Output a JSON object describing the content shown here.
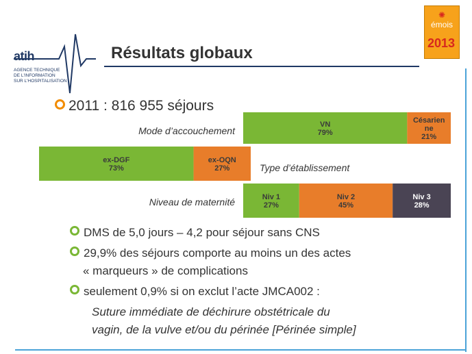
{
  "logo": {
    "name": "atih",
    "subtitle_lines": [
      "AGENCE TECHNIQUE",
      "DE L'INFORMATION",
      "SUR L'HOSPITALISATION"
    ],
    "badge_word": "émois",
    "badge_year": "2013"
  },
  "title": "Résultats globaux",
  "headline": "2011 : 816 955 séjours",
  "colors": {
    "green": "#7ab735",
    "orange": "#e87d2a",
    "dark": "#4a4454",
    "accent_blue": "#4aa3d8",
    "title_rule": "#1f3864"
  },
  "chart_data": [
    {
      "type": "bar",
      "orientation": "horizontal-stacked-100",
      "label": "Mode d’accouchement",
      "series": [
        {
          "name": "VN",
          "values": [
            79
          ],
          "color": "#7ab735"
        },
        {
          "name": "Césarien ne",
          "values": [
            21
          ],
          "color": "#e87d2a"
        }
      ],
      "value_labels": [
        "79%",
        "21%"
      ]
    },
    {
      "type": "bar",
      "orientation": "horizontal-stacked-100",
      "label": "Type d’établissement",
      "series": [
        {
          "name": "ex-DGF",
          "values": [
            73
          ],
          "color": "#7ab735"
        },
        {
          "name": "ex-OQN",
          "values": [
            27
          ],
          "color": "#e87d2a"
        }
      ],
      "value_labels": [
        "73%",
        "27%"
      ]
    },
    {
      "type": "bar",
      "orientation": "horizontal-stacked-100",
      "label": "Niveau de maternité",
      "series": [
        {
          "name": "Niv 1",
          "values": [
            27
          ],
          "color": "#7ab735"
        },
        {
          "name": "Niv 2",
          "values": [
            45
          ],
          "color": "#e87d2a"
        },
        {
          "name": "Niv 3",
          "values": [
            28
          ],
          "color": "#4a4454"
        }
      ],
      "value_labels": [
        "27%",
        "45%",
        "28%"
      ]
    }
  ],
  "bullets": [
    {
      "text": "DMS de 5,0 jours – 4,2 pour séjour sans CNS"
    },
    {
      "text": "29,9% des séjours comporte au moins un des actes",
      "text2": "« marqueurs » de complications"
    },
    {
      "text": "seulement 0,9% si on exclut l’acte JMCA002 :"
    }
  ],
  "italic_note": {
    "line1": "Suture immédiate de déchirure obstétricale du",
    "line2": "vagin, de la vulve et/ou du périnée [Périnée simple]"
  }
}
